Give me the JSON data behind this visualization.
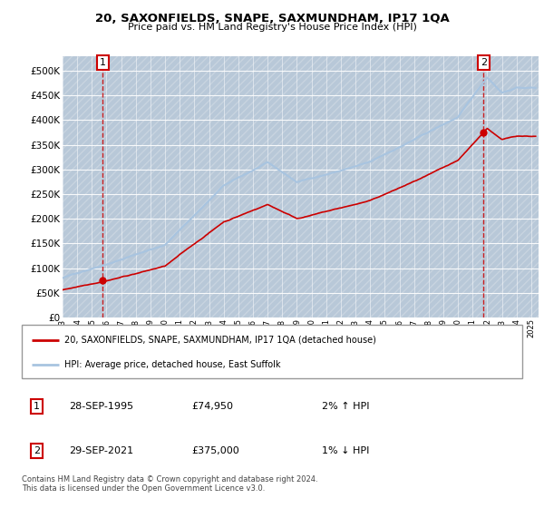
{
  "title": "20, SAXONFIELDS, SNAPE, SAXMUNDHAM, IP17 1QA",
  "subtitle": "Price paid vs. HM Land Registry's House Price Index (HPI)",
  "ylabel_ticks": [
    "£0",
    "£50K",
    "£100K",
    "£150K",
    "£200K",
    "£250K",
    "£300K",
    "£350K",
    "£400K",
    "£450K",
    "£500K"
  ],
  "ytick_values": [
    0,
    50000,
    100000,
    150000,
    200000,
    250000,
    300000,
    350000,
    400000,
    450000,
    500000
  ],
  "ylim": [
    0,
    530000
  ],
  "xlim_start": 1993.0,
  "xlim_end": 2025.5,
  "xtick_years": [
    1993,
    1994,
    1995,
    1996,
    1997,
    1998,
    1999,
    2000,
    2001,
    2002,
    2003,
    2004,
    2005,
    2006,
    2007,
    2008,
    2009,
    2010,
    2011,
    2012,
    2013,
    2014,
    2015,
    2016,
    2017,
    2018,
    2019,
    2020,
    2021,
    2022,
    2023,
    2024,
    2025
  ],
  "hpi_line_color": "#a8c4e0",
  "price_line_color": "#cc0000",
  "sale1_x": 1995.75,
  "sale1_y": 74950,
  "sale2_x": 2021.75,
  "sale2_y": 375000,
  "legend_label1": "20, SAXONFIELDS, SNAPE, SAXMUNDHAM, IP17 1QA (detached house)",
  "legend_label2": "HPI: Average price, detached house, East Suffolk",
  "annotation1_label": "1",
  "annotation2_label": "2",
  "table_row1": [
    "1",
    "28-SEP-1995",
    "£74,950",
    "2% ↑ HPI"
  ],
  "table_row2": [
    "2",
    "29-SEP-2021",
    "£375,000",
    "1% ↓ HPI"
  ],
  "footer": "Contains HM Land Registry data © Crown copyright and database right 2024.\nThis data is licensed under the Open Government Licence v3.0.",
  "plot_bg_color": "#d8e4f0",
  "hatch_color": "#b8c8d8"
}
